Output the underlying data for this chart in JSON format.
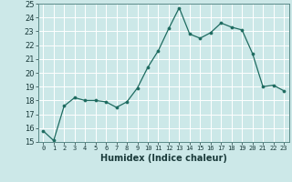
{
  "x": [
    0,
    1,
    2,
    3,
    4,
    5,
    6,
    7,
    8,
    9,
    10,
    11,
    12,
    13,
    14,
    15,
    16,
    17,
    18,
    19,
    20,
    21,
    22,
    23
  ],
  "y": [
    15.8,
    15.1,
    17.6,
    18.2,
    18.0,
    18.0,
    17.9,
    17.5,
    17.9,
    18.9,
    20.4,
    21.6,
    23.2,
    24.7,
    22.8,
    22.5,
    22.9,
    23.6,
    23.3,
    23.1,
    21.4,
    19.0,
    19.1,
    18.7
  ],
  "xlabel": "Humidex (Indice chaleur)",
  "ylim": [
    15,
    25
  ],
  "xlim_min": -0.5,
  "xlim_max": 23.5,
  "yticks": [
    15,
    16,
    17,
    18,
    19,
    20,
    21,
    22,
    23,
    24,
    25
  ],
  "xticks": [
    0,
    1,
    2,
    3,
    4,
    5,
    6,
    7,
    8,
    9,
    10,
    11,
    12,
    13,
    14,
    15,
    16,
    17,
    18,
    19,
    20,
    21,
    22,
    23
  ],
  "xtick_labels": [
    "0",
    "1",
    "2",
    "3",
    "4",
    "5",
    "6",
    "7",
    "8",
    "9",
    "10",
    "11",
    "12",
    "13",
    "14",
    "15",
    "16",
    "17",
    "18",
    "19",
    "20",
    "21",
    "22",
    "23"
  ],
  "line_color": "#1e6b60",
  "marker_color": "#1e6b60",
  "bg_color": "#cce8e8",
  "grid_color": "#ffffff",
  "axes_bg": "#cce8e8",
  "xlabel_fontsize": 7,
  "ytick_fontsize": 6,
  "xtick_fontsize": 5
}
